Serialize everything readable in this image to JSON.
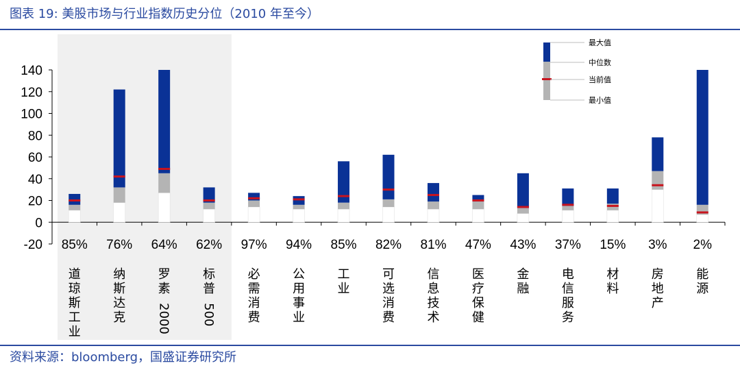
{
  "title": "图表 19:  美股市场与行业指数历史分位（2010 年至今）",
  "source": "资料来源：bloomberg，国盛证券研究所",
  "chart_data": {
    "type": "box",
    "ylim": [
      -20,
      140
    ],
    "yticks": [
      -20,
      0,
      20,
      40,
      60,
      80,
      100,
      120,
      140
    ],
    "legend": [
      "最大值",
      "中位数",
      "当前值",
      "最小值"
    ],
    "colors": {
      "upper": "#0a3296",
      "lower": "#b4b4b4",
      "current": "#c8141e",
      "shade": "#f0f0f0",
      "title": "#2a4aa0"
    },
    "highlighted_range": [
      0,
      3
    ],
    "categories": [
      {
        "name": "道琼斯工业",
        "label_chars": [
          "道",
          "琼",
          "斯",
          "工",
          "业"
        ],
        "percentile": "85%",
        "min": 11,
        "median": 16,
        "current": 20,
        "max": 26
      },
      {
        "name": "纳斯达克",
        "label_chars": [
          "纳",
          "斯",
          "达",
          "克"
        ],
        "percentile": "76%",
        "min": 18,
        "median": 32,
        "current": 42,
        "max": 122
      },
      {
        "name": "罗素2000",
        "label_chars": [
          "罗",
          "素",
          "2000"
        ],
        "percentile": "64%",
        "min": 27,
        "median": 45,
        "current": 49,
        "max": 140
      },
      {
        "name": "标普500",
        "label_chars": [
          "标",
          "普",
          "500"
        ],
        "percentile": "62%",
        "min": 12,
        "median": 18,
        "current": 20,
        "max": 32
      },
      {
        "name": "必需消费",
        "label_chars": [
          "必",
          "需",
          "消",
          "费"
        ],
        "percentile": "97%",
        "min": 14,
        "median": 20,
        "current": 22,
        "max": 27
      },
      {
        "name": "公用事业",
        "label_chars": [
          "公",
          "用",
          "事",
          "业"
        ],
        "percentile": "94%",
        "min": 12,
        "median": 16,
        "current": 21,
        "max": 24
      },
      {
        "name": "工业",
        "label_chars": [
          "工",
          "业"
        ],
        "percentile": "85%",
        "min": 12,
        "median": 18,
        "current": 24,
        "max": 56
      },
      {
        "name": "可选消费",
        "label_chars": [
          "可",
          "选",
          "消",
          "费"
        ],
        "percentile": "82%",
        "min": 14,
        "median": 21,
        "current": 30,
        "max": 62
      },
      {
        "name": "信息技术",
        "label_chars": [
          "信",
          "息",
          "技",
          "术"
        ],
        "percentile": "81%",
        "min": 12,
        "median": 19,
        "current": 25,
        "max": 36
      },
      {
        "name": "医疗保健",
        "label_chars": [
          "医",
          "疗",
          "保",
          "健"
        ],
        "percentile": "47%",
        "min": 12,
        "median": 19,
        "current": 20,
        "max": 25
      },
      {
        "name": "金融",
        "label_chars": [
          "金",
          "融"
        ],
        "percentile": "43%",
        "min": 8,
        "median": 13,
        "current": 14,
        "max": 45
      },
      {
        "name": "电信服务",
        "label_chars": [
          "电",
          "信",
          "服",
          "务"
        ],
        "percentile": "37%",
        "min": 11,
        "median": 15,
        "current": 16,
        "max": 31
      },
      {
        "name": "材料",
        "label_chars": [
          "材",
          "料"
        ],
        "percentile": "15%",
        "min": 11,
        "median": 17,
        "current": 15,
        "max": 31
      },
      {
        "name": "房地产",
        "label_chars": [
          "房",
          "地",
          "产"
        ],
        "percentile": "3%",
        "min": 30,
        "median": 47,
        "current": 34,
        "max": 78
      },
      {
        "name": "能源",
        "label_chars": [
          "能",
          "源"
        ],
        "percentile": "2%",
        "min": 7,
        "median": 16,
        "current": 9,
        "max": 140
      }
    ]
  }
}
